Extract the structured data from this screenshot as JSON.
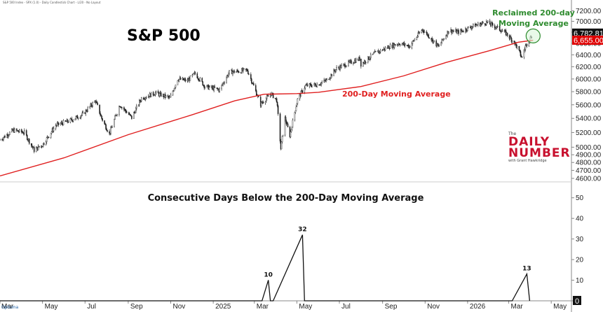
{
  "header_text": "S&P 500 Index - SPX (1.0) - Daily Candlestick Chart - L/20 - No Layout",
  "title": "S&P 500",
  "ma_label": "200-Day Moving Average",
  "reclaimed_label": "Reclaimed 200-day Moving Average",
  "sub_title": "Consecutive Days Below the 200-Day Moving Average",
  "logo": {
    "the": "The",
    "word1": "DAILY",
    "word2": "NUMBER",
    "byline": "with Grant Hawkridge"
  },
  "watermark": "Optuma",
  "colors": {
    "ma": "#e02020",
    "candle": "#222222",
    "highlight": "#2e8b2e",
    "price_tag_bg": "#111111",
    "ma_tag_bg": "#e00000"
  },
  "chart_data": [
    {
      "type": "candlestick",
      "title": "S&P 500",
      "x_labels": [
        "Mar",
        "May",
        "Jul",
        "Sep",
        "Nov",
        "2025",
        "Mar",
        "May",
        "Jul",
        "Sep",
        "Nov",
        "2026",
        "Mar",
        "May"
      ],
      "y_ticks": [
        "7200.00",
        "7000.00",
        "6800.00",
        "6600.00",
        "6400.00",
        "6200.00",
        "6000.00",
        "5800.00",
        "5600.00",
        "5400.00",
        "5200.00",
        "5000.00",
        "4900.00",
        "4800.00",
        "4700.00",
        "4600.00"
      ],
      "ylim": [
        4600,
        7300
      ],
      "scale": "log",
      "last_price": "6,782.81",
      "ma_value": "6,655.00",
      "price_path": [
        [
          "2024-03-01",
          5100
        ],
        [
          "2024-03-20",
          5230
        ],
        [
          "2024-04-05",
          5200
        ],
        [
          "2024-04-19",
          4960
        ],
        [
          "2024-05-01",
          5030
        ],
        [
          "2024-05-20",
          5300
        ],
        [
          "2024-06-10",
          5370
        ],
        [
          "2024-06-28",
          5460
        ],
        [
          "2024-07-16",
          5660
        ],
        [
          "2024-07-25",
          5400
        ],
        [
          "2024-08-05",
          5180
        ],
        [
          "2024-08-20",
          5600
        ],
        [
          "2024-09-06",
          5410
        ],
        [
          "2024-09-20",
          5700
        ],
        [
          "2024-10-10",
          5780
        ],
        [
          "2024-10-31",
          5700
        ],
        [
          "2024-11-11",
          6000
        ],
        [
          "2024-11-25",
          5970
        ],
        [
          "2024-12-06",
          6090
        ],
        [
          "2024-12-20",
          5880
        ],
        [
          "2025-01-10",
          5830
        ],
        [
          "2025-01-24",
          6110
        ],
        [
          "2025-02-19",
          6140
        ],
        [
          "2025-03-10",
          5610
        ],
        [
          "2025-03-25",
          5770
        ],
        [
          "2025-04-02",
          5670
        ],
        [
          "2025-04-08",
          4980
        ],
        [
          "2025-04-14",
          5400
        ],
        [
          "2025-04-21",
          5160
        ],
        [
          "2025-05-02",
          5680
        ],
        [
          "2025-05-13",
          5890
        ],
        [
          "2025-05-30",
          5910
        ],
        [
          "2025-06-13",
          5980
        ],
        [
          "2025-06-27",
          6170
        ],
        [
          "2025-07-15",
          6260
        ],
        [
          "2025-07-31",
          6340
        ],
        [
          "2025-08-01",
          6240
        ],
        [
          "2025-08-20",
          6420
        ],
        [
          "2025-09-10",
          6540
        ],
        [
          "2025-09-25",
          6600
        ],
        [
          "2025-10-10",
          6550
        ],
        [
          "2025-10-28",
          6850
        ],
        [
          "2025-11-07",
          6720
        ],
        [
          "2025-11-20",
          6540
        ],
        [
          "2025-12-05",
          6830
        ],
        [
          "2025-12-20",
          6800
        ],
        [
          "2026-01-10",
          6920
        ],
        [
          "2026-01-28",
          6980
        ],
        [
          "2026-02-10",
          6900
        ],
        [
          "2026-02-25",
          6780
        ],
        [
          "2026-03-10",
          6600
        ],
        [
          "2026-03-20",
          6350
        ],
        [
          "2026-03-25",
          6550
        ],
        [
          "2026-04-05",
          6782
        ]
      ],
      "ma_path": [
        [
          "2024-03-01",
          4630
        ],
        [
          "2024-06-01",
          4860
        ],
        [
          "2024-09-01",
          5170
        ],
        [
          "2024-12-01",
          5450
        ],
        [
          "2025-02-01",
          5660
        ],
        [
          "2025-03-15",
          5760
        ],
        [
          "2025-05-01",
          5770
        ],
        [
          "2025-06-01",
          5790
        ],
        [
          "2025-08-01",
          5880
        ],
        [
          "2025-10-01",
          6050
        ],
        [
          "2025-12-01",
          6270
        ],
        [
          "2026-02-01",
          6470
        ],
        [
          "2026-03-15",
          6620
        ],
        [
          "2026-04-05",
          6655
        ]
      ]
    },
    {
      "type": "line",
      "title": "Consecutive Days Below the 200-Day Moving Average",
      "x_labels": [
        "Mar",
        "May",
        "Jul",
        "Sep",
        "Nov",
        "2025",
        "Mar",
        "May",
        "Jul",
        "Sep",
        "Nov",
        "2026",
        "Mar",
        "May"
      ],
      "y_ticks": [
        "50",
        "40",
        "30",
        "20",
        "10",
        "0"
      ],
      "ylim": [
        0,
        55
      ],
      "current_value": "0",
      "points": [
        [
          "2024-03-01",
          0
        ],
        [
          "2025-03-07",
          0
        ],
        [
          "2025-03-12",
          0
        ],
        [
          "2025-03-21",
          10
        ],
        [
          "2025-03-24",
          0
        ],
        [
          "2025-03-28",
          0
        ],
        [
          "2025-05-09",
          32
        ],
        [
          "2025-05-12",
          0
        ],
        [
          "2026-03-06",
          0
        ],
        [
          "2026-03-27",
          13
        ],
        [
          "2026-03-31",
          0
        ]
      ],
      "peak_labels": [
        {
          "label": "10",
          "date": "2025-03-21",
          "value": 10
        },
        {
          "label": "32",
          "date": "2025-05-09",
          "value": 32
        },
        {
          "label": "13",
          "date": "2026-03-27",
          "value": 13
        }
      ]
    }
  ]
}
